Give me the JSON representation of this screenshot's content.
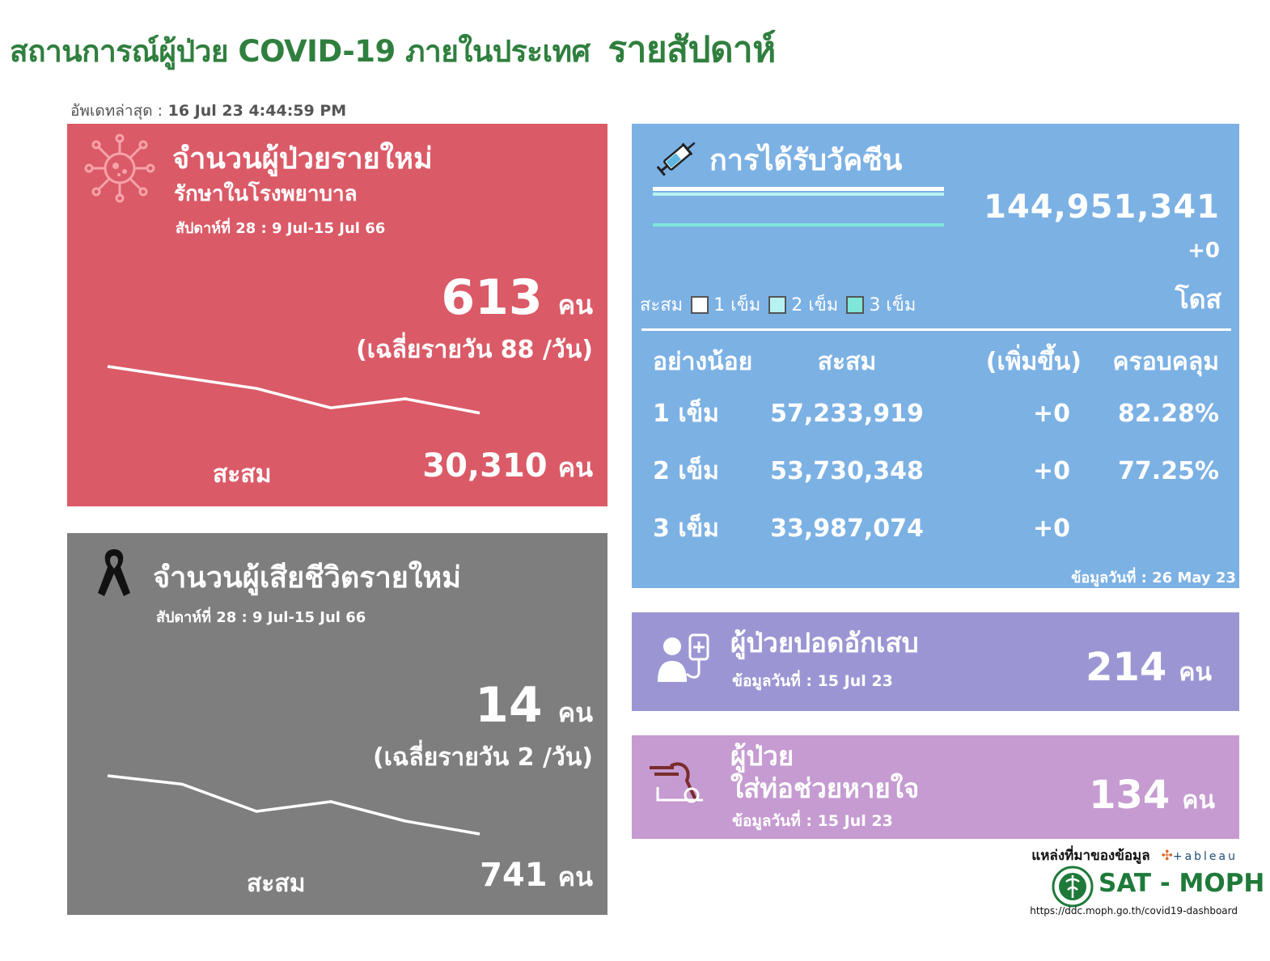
{
  "header": {
    "title": "สถานการณ์ผู้ป่วย COVID-19 ภายในประเทศ",
    "title_suffix": "รายสัปดาห์",
    "updated_label": "อัพเดทล่าสุด :",
    "updated_value": "16 Jul 23 4:44:59 PM"
  },
  "new_cases": {
    "title": "จำนวนผู้ป่วยรายใหม่",
    "subtitle": "รักษาในโรงพยาบาล",
    "week": "สัปดาห์ที่ 28 : 9 Jul-15 Jul 66",
    "value": "613",
    "unit": "คน",
    "avg": "(เฉลี่ยรายวัน 88 /วัน)",
    "cum_label": "สะสม",
    "cum_value": "30,310",
    "cum_unit": "คน",
    "trend": [
      100,
      83,
      66,
      36,
      50,
      28
    ],
    "colors": {
      "card": "#db5a67",
      "line": "#ffffff"
    }
  },
  "deaths": {
    "title": "จำนวนผู้เสียชีวิตรายใหม่",
    "week": "สัปดาห์ที่  28 : 9 Jul-15 Jul 66",
    "value": "14",
    "unit": "คน",
    "avg": "(เฉลี่ยรายวัน 2 /วัน)",
    "cum_label": "สะสม",
    "cum_value": "741",
    "cum_unit": "คน",
    "trend": [
      100,
      87,
      45,
      60,
      30,
      10
    ],
    "colors": {
      "card": "#7e7e7e",
      "line": "#ffffff"
    }
  },
  "vaccine": {
    "title": "การได้รับวัคซีน",
    "total": "144,951,341",
    "increase": "+0",
    "unit": "โดส",
    "legend_label": "สะสม",
    "legend": [
      {
        "label": "1 เข็ม",
        "color": "#ffffff"
      },
      {
        "label": "2 เข็ม",
        "color": "#b7f2f2"
      },
      {
        "label": "3 เข็ม",
        "color": "#7fe6d9"
      }
    ],
    "headers": [
      "อย่างน้อย",
      "สะสม",
      "(เพิ่มขึ้น)",
      "ครอบคลุม"
    ],
    "rows": [
      {
        "dose": "1 เข็ม",
        "cumulative": "57,233,919",
        "increase": "+0",
        "coverage": "82.28%"
      },
      {
        "dose": "2 เข็ม",
        "cumulative": "53,730,348",
        "increase": "+0",
        "coverage": "77.25%"
      },
      {
        "dose": "3 เข็ม",
        "cumulative": "33,987,074",
        "increase": "+0",
        "coverage": ""
      }
    ],
    "note": "ข้อมูลวันที่ : 26 May 23",
    "colors": {
      "card": "#7cb1e4",
      "bar1": "#ffffff",
      "bar2": "#b7f2f2",
      "bar3": "#7fe6d9"
    }
  },
  "pneumonia": {
    "title": "ผู้ป่วยปอดอักเสบ",
    "note": "ข้อมูลวันที่ : 15 Jul 23",
    "value": "214",
    "unit": "คน",
    "colors": {
      "card": "#9b96d3"
    }
  },
  "ventilator": {
    "title_line1": "ผู้ป่วย",
    "title_line2": "ใส่ท่อช่วยหายใจ",
    "note": "ข้อมูลวันที่ : 15 Jul 23",
    "value": "134",
    "unit": "คน",
    "colors": {
      "card": "#c59bd1"
    }
  },
  "footer": {
    "source_label": "แหล่งที่มาของข้อมูล",
    "tableau": "+ableau",
    "org": "SAT - MOPH",
    "url": "https://ddc.moph.go.th/covid19-dashboard"
  }
}
